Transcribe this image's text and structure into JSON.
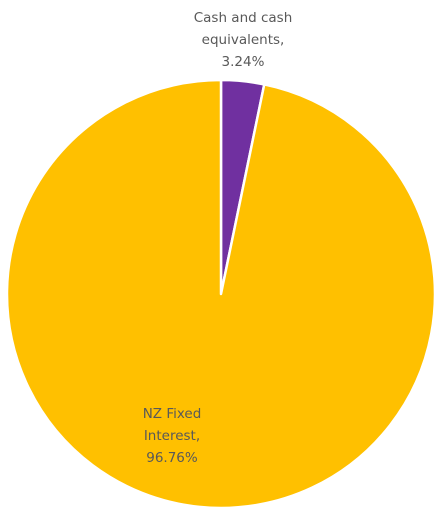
{
  "chart_data": {
    "type": "pie",
    "title": "",
    "slices": [
      {
        "label": "Cash and cash equivalents",
        "value": 3.24,
        "value_label": "3.24%",
        "color": "#7030a0",
        "label_lines": [
          "Cash and cash",
          "equivalents,",
          "3.24%"
        ]
      },
      {
        "label": "NZ Fixed Interest",
        "value": 96.76,
        "value_label": "96.76%",
        "color": "#ffc000",
        "label_lines": [
          "NZ Fixed",
          "Interest,",
          "96.76%"
        ]
      }
    ],
    "start_angle": "12 o'clock",
    "direction": "clockwise",
    "slice_border_color": "#ffffff",
    "label_color": "#595959",
    "legend": "none"
  }
}
